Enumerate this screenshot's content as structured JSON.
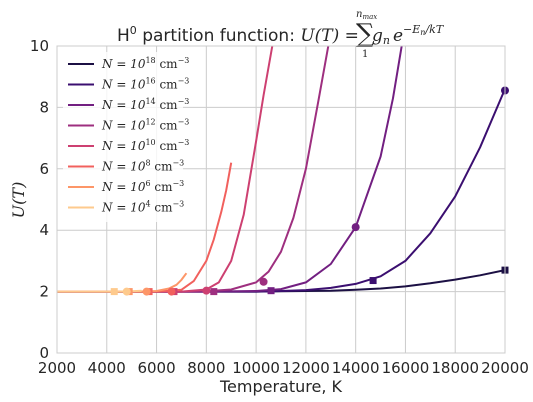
{
  "chart_data": {
    "type": "line",
    "title_prefix": "H",
    "title_sup": "0",
    "title_middle": " partition function: ",
    "title_formula": {
      "lhs": "U(T) =",
      "sum": "∑",
      "upper": "n",
      "upper_sub": "max",
      "lower": "1",
      "rhs_g": "g",
      "rhs_g_sub": "n",
      "rhs_e": "e",
      "rhs_exp": "−E",
      "rhs_exp_sub": "n",
      "rhs_exp_tail": "/kT"
    },
    "xlabel": "Temperature, K",
    "ylabel": "U(T)",
    "xlim": [
      2000,
      20000
    ],
    "ylim": [
      0,
      10
    ],
    "xticks": [
      2000,
      4000,
      6000,
      8000,
      10000,
      12000,
      14000,
      16000,
      18000,
      20000
    ],
    "yticks": [
      0,
      2,
      4,
      6,
      8,
      10
    ],
    "grid": true,
    "legend_placement": "top-left",
    "series": [
      {
        "label_prefix": "N = 10",
        "exp": "18",
        "unit": " cm",
        "unit_exp": "−3",
        "color": "#1c1044",
        "x": [
          2000,
          8000,
          10000,
          11000,
          12000,
          13000,
          14000,
          15000,
          16000,
          17000,
          18000,
          19000,
          20000
        ],
        "y": [
          2.0,
          2.0,
          2.0,
          2.01,
          2.02,
          2.03,
          2.06,
          2.1,
          2.17,
          2.27,
          2.39,
          2.53,
          2.7
        ],
        "circle": null,
        "square": [
          20000,
          2.7
        ]
      },
      {
        "label_prefix": "N = 10",
        "exp": "16",
        "unit": " cm",
        "unit_exp": "−3",
        "color": "#3b0f70",
        "x": [
          2000,
          8000,
          10000,
          11000,
          12000,
          13000,
          14000,
          15000,
          16000,
          17000,
          18000,
          19000,
          20000
        ],
        "y": [
          2.0,
          2.0,
          2.0,
          2.02,
          2.05,
          2.12,
          2.25,
          2.5,
          3.0,
          3.9,
          5.1,
          6.7,
          8.6
        ],
        "circle": [
          20000,
          8.55
        ],
        "square": [
          14700,
          2.36
        ]
      },
      {
        "label_prefix": "N = 10",
        "exp": "14",
        "unit": " cm",
        "unit_exp": "−3",
        "color": "#721f81",
        "x": [
          2000,
          8000,
          10000,
          11000,
          12000,
          13000,
          14000,
          15000,
          15500,
          15850
        ],
        "y": [
          2.0,
          2.0,
          2.02,
          2.08,
          2.3,
          2.9,
          4.1,
          6.4,
          8.3,
          10.0
        ],
        "circle": [
          14000,
          4.1
        ],
        "square": [
          10600,
          2.03
        ]
      },
      {
        "label_prefix": "N = 10",
        "exp": "12",
        "unit": " cm",
        "unit_exp": "−3",
        "color": "#9e2f7f",
        "x": [
          2000,
          7000,
          8000,
          9000,
          10000,
          10500,
          11000,
          11500,
          12000,
          12500,
          12900
        ],
        "y": [
          2.0,
          2.0,
          2.01,
          2.07,
          2.3,
          2.65,
          3.3,
          4.4,
          6.0,
          8.2,
          10.0
        ],
        "circle": [
          10300,
          2.32
        ],
        "square": [
          8300,
          2.0
        ]
      },
      {
        "label_prefix": "N = 10",
        "exp": "10",
        "unit": " cm",
        "unit_exp": "−3",
        "color": "#cd4071",
        "x": [
          2000,
          6000,
          7000,
          8000,
          8500,
          9000,
          9500,
          10000,
          10300,
          10650
        ],
        "y": [
          2.0,
          2.0,
          2.0,
          2.07,
          2.3,
          3.0,
          4.5,
          6.9,
          8.4,
          10.0
        ],
        "circle": [
          8000,
          2.03
        ],
        "square": [
          6700,
          2.0
        ]
      },
      {
        "label_prefix": "N = 10",
        "exp": "8",
        "unit": " cm",
        "unit_exp": "−3",
        "color": "#f1605d",
        "x": [
          2000,
          6000,
          7000,
          7500,
          8000,
          8300,
          8600,
          8800,
          9000
        ],
        "y": [
          2.0,
          2.0,
          2.06,
          2.35,
          3.0,
          3.7,
          4.6,
          5.3,
          6.2
        ],
        "circle": [
          6600,
          2.0
        ],
        "square": [
          5700,
          2.0
        ]
      },
      {
        "label_prefix": "N = 10",
        "exp": "6",
        "unit": " cm",
        "unit_exp": "−3",
        "color": "#fd9668",
        "x": [
          2000,
          5500,
          6000,
          6500,
          6800,
          7000,
          7200
        ],
        "y": [
          2.0,
          2.0,
          2.02,
          2.1,
          2.22,
          2.38,
          2.6
        ],
        "circle": [
          5600,
          2.0
        ],
        "square": [
          4900,
          2.0
        ]
      },
      {
        "label_prefix": "N = 10",
        "exp": "4",
        "unit": " cm",
        "unit_exp": "−3",
        "color": "#feca8d",
        "x": [
          2000,
          4000,
          4500,
          5000,
          5400
        ],
        "y": [
          2.0,
          2.0,
          2.0,
          2.01,
          2.03
        ],
        "circle": [
          4800,
          2.0
        ],
        "square": [
          4300,
          2.0
        ]
      }
    ]
  }
}
